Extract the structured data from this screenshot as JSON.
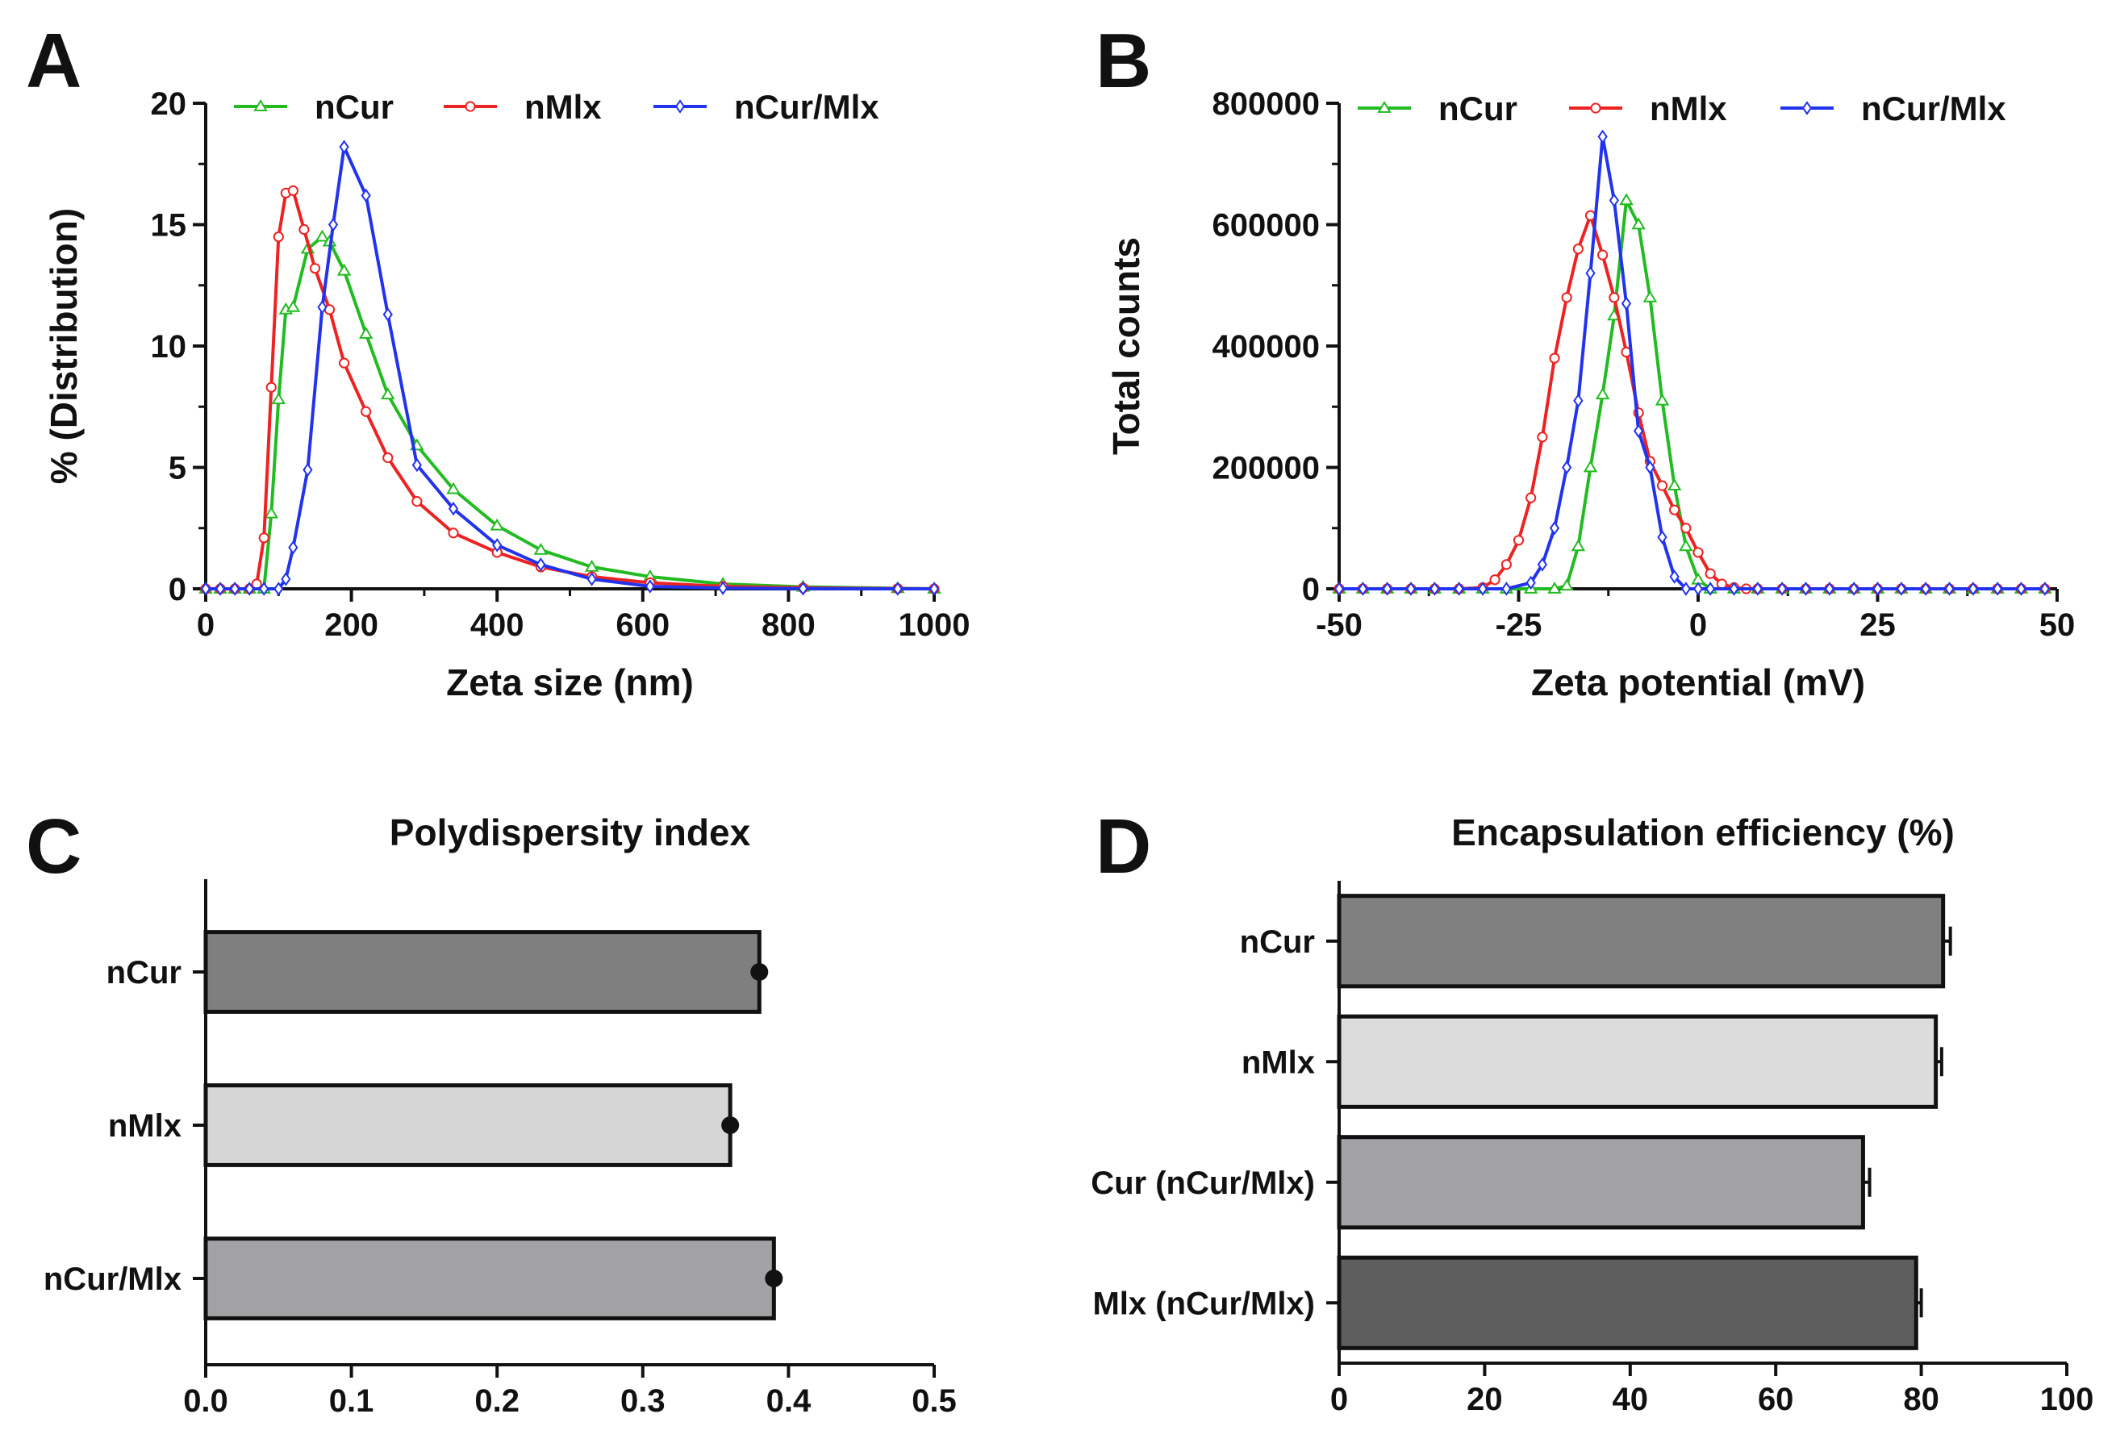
{
  "figure": {
    "colors": {
      "nCur": "#22bb22",
      "nMlx": "#ee2222",
      "nCurMlx": "#2233ee",
      "axis": "#111111"
    }
  },
  "chart_data": [
    {
      "panel": "A",
      "type": "line",
      "title": "",
      "xlabel": "Zeta size (nm)",
      "ylabel": "% (Distribution)",
      "xlim": [
        0,
        1000
      ],
      "ylim": [
        0,
        20
      ],
      "xticks": [
        0,
        200,
        400,
        600,
        800,
        1000
      ],
      "yticks": [
        0,
        5,
        10,
        15,
        20
      ],
      "legend_position": "top",
      "series": [
        {
          "name": "nCur",
          "color": "#22bb22",
          "marker": "triangle",
          "x": [
            0,
            20,
            40,
            60,
            80,
            90,
            100,
            110,
            120,
            140,
            160,
            170,
            190,
            220,
            250,
            290,
            340,
            400,
            460,
            530,
            610,
            710,
            820,
            950,
            1000
          ],
          "y": [
            0,
            0,
            0,
            0,
            0,
            3.1,
            7.8,
            11.5,
            11.6,
            14.0,
            14.5,
            14.3,
            13.1,
            10.5,
            8.0,
            5.9,
            4.1,
            2.6,
            1.6,
            0.9,
            0.5,
            0.2,
            0.08,
            0.02,
            0
          ]
        },
        {
          "name": "nMlx",
          "color": "#ee2222",
          "marker": "circle",
          "x": [
            0,
            20,
            40,
            60,
            70,
            80,
            90,
            100,
            110,
            120,
            135,
            150,
            170,
            190,
            220,
            250,
            290,
            340,
            400,
            460,
            530,
            610,
            710,
            820,
            950,
            1000
          ],
          "y": [
            0,
            0,
            0,
            0,
            0.2,
            2.1,
            8.3,
            14.5,
            16.3,
            16.4,
            14.8,
            13.2,
            11.5,
            9.3,
            7.3,
            5.4,
            3.6,
            2.3,
            1.5,
            0.9,
            0.5,
            0.25,
            0.1,
            0.04,
            0.01,
            0
          ]
        },
        {
          "name": "nCur/Mlx",
          "color": "#2233ee",
          "marker": "diamond",
          "x": [
            0,
            20,
            40,
            60,
            80,
            100,
            110,
            120,
            140,
            160,
            175,
            190,
            220,
            250,
            290,
            340,
            400,
            460,
            530,
            610,
            710,
            820,
            950,
            1000
          ],
          "y": [
            0,
            0,
            0,
            0,
            0,
            0,
            0.4,
            1.7,
            4.9,
            11.6,
            15.0,
            18.2,
            16.2,
            11.3,
            5.1,
            3.3,
            1.8,
            1.0,
            0.4,
            0.1,
            0.03,
            0.01,
            0,
            0
          ]
        }
      ]
    },
    {
      "panel": "B",
      "type": "line",
      "title": "",
      "xlabel": "Zeta potential (mV)",
      "ylabel": "Total counts",
      "xlim": [
        -50,
        50
      ],
      "ylim": [
        0,
        800000
      ],
      "xticks": [
        -50,
        -25,
        0,
        25,
        50
      ],
      "yticks": [
        0,
        200000,
        400000,
        600000,
        800000
      ],
      "legend_position": "top",
      "series": [
        {
          "name": "nCur",
          "color": "#22bb22",
          "marker": "triangle",
          "x": [
            -50,
            -46.7,
            -43.3,
            -40,
            -36.7,
            -33.3,
            -30,
            -26.7,
            -23.3,
            -20,
            -18.3,
            -16.7,
            -15,
            -13.3,
            -11.7,
            -10,
            -8.3,
            -6.7,
            -5,
            -3.3,
            -1.7,
            0,
            1.7,
            5,
            8.3,
            11.7,
            15,
            18.3,
            21.7,
            25,
            28.3,
            31.7,
            35,
            38.3,
            41.7,
            45,
            48.3
          ],
          "y": [
            0,
            0,
            0,
            0,
            0,
            0,
            0,
            0,
            0,
            0,
            5000,
            70000,
            200000,
            320000,
            450000,
            640000,
            600000,
            480000,
            310000,
            170000,
            70000,
            15000,
            0,
            0,
            0,
            0,
            0,
            0,
            0,
            0,
            0,
            0,
            0,
            0,
            0,
            0,
            0
          ]
        },
        {
          "name": "nMlx",
          "color": "#ee2222",
          "marker": "circle",
          "x": [
            -50,
            -46.7,
            -43.3,
            -40,
            -36.7,
            -33.3,
            -30,
            -28.3,
            -26.7,
            -25,
            -23.3,
            -21.7,
            -20,
            -18.3,
            -16.7,
            -15,
            -13.3,
            -11.7,
            -10,
            -8.3,
            -6.7,
            -5,
            -3.3,
            -1.7,
            0,
            1.7,
            3.3,
            5,
            6.7,
            8.3,
            11.7,
            15,
            18.3,
            21.7,
            25,
            28.3,
            31.7,
            35,
            38.3,
            41.7,
            45,
            48.3
          ],
          "y": [
            0,
            0,
            0,
            0,
            0,
            0,
            2000,
            15000,
            40000,
            80000,
            150000,
            250000,
            380000,
            480000,
            560000,
            615000,
            550000,
            480000,
            390000,
            290000,
            210000,
            170000,
            130000,
            100000,
            60000,
            25000,
            8000,
            2000,
            0,
            0,
            0,
            0,
            0,
            0,
            0,
            0,
            0,
            0,
            0,
            0,
            0,
            0
          ]
        },
        {
          "name": "nCur/Mlx",
          "color": "#2233ee",
          "marker": "diamond",
          "x": [
            -50,
            -46.7,
            -43.3,
            -40,
            -36.7,
            -33.3,
            -30,
            -26.7,
            -23.3,
            -21.7,
            -20,
            -18.3,
            -16.7,
            -15,
            -13.3,
            -11.7,
            -10,
            -8.3,
            -6.7,
            -5,
            -3.3,
            -1.7,
            0,
            1.7,
            5,
            8.3,
            11.7,
            15,
            18.3,
            21.7,
            25,
            28.3,
            31.7,
            35,
            38.3,
            41.7,
            45,
            48.3
          ],
          "y": [
            0,
            0,
            0,
            0,
            0,
            0,
            0,
            0,
            10000,
            40000,
            100000,
            200000,
            310000,
            520000,
            745000,
            640000,
            470000,
            260000,
            200000,
            85000,
            20000,
            0,
            0,
            0,
            0,
            0,
            0,
            0,
            0,
            0,
            0,
            0,
            0,
            0,
            0,
            0,
            0,
            0
          ]
        }
      ]
    },
    {
      "panel": "C",
      "type": "bar",
      "orientation": "horizontal",
      "title": "Polydispersity index",
      "xlabel": "",
      "ylabel": "",
      "xlim": [
        0,
        0.5
      ],
      "xticks": [
        "0.0",
        "0.1",
        "0.2",
        "0.3",
        "0.4",
        "0.5"
      ],
      "categories": [
        "nCur",
        "nMlx",
        "nCur/Mlx"
      ],
      "values": [
        0.38,
        0.36,
        0.39
      ],
      "points": [
        0.38,
        0.36,
        0.39
      ],
      "bar_colors": [
        "#7f7f7f",
        "#d6d6d6",
        "#a2a2a4"
      ]
    },
    {
      "panel": "D",
      "type": "bar",
      "orientation": "horizontal",
      "title": "Encapsulation efficiency (%)",
      "xlabel": "",
      "ylabel": "",
      "xlim": [
        0,
        100
      ],
      "xticks": [
        "0",
        "20",
        "40",
        "60",
        "80",
        "100"
      ],
      "categories": [
        "nCur",
        "nMlx",
        "Cur (nCur/Mlx)",
        "Mlx (nCur/Mlx)"
      ],
      "values": [
        83,
        82,
        72,
        79.3
      ],
      "errors": [
        1.0,
        0.8,
        0.9,
        0.7
      ],
      "bar_colors": [
        "#808080",
        "#dcdcdc",
        "#a2a2a4",
        "#5e5e5e"
      ]
    }
  ]
}
